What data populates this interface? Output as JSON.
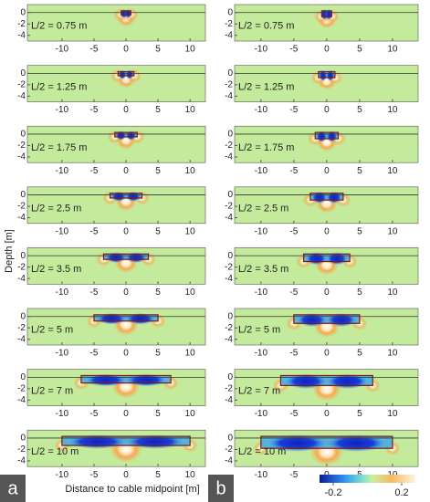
{
  "y_label": "Depth [m]",
  "x_label": "Distance to cable midpoint [m]",
  "colorbar": {
    "clim": [
      -0.28,
      0.28
    ],
    "ticks": [
      -0.2,
      0.2
    ]
  },
  "columns": [
    {
      "letter": "a",
      "xlim": [
        -15.4,
        12.4
      ],
      "ylim": [
        -5,
        1.4
      ],
      "xticks": [
        -10,
        -5,
        0,
        5,
        10
      ],
      "yticks": [
        0,
        -2,
        -4
      ],
      "panels": [
        {
          "label": "L/2 = 0.75 m",
          "half_length": 0.75
        },
        {
          "label": "L/2 = 1.25 m",
          "half_length": 1.25
        },
        {
          "label": "L/2 = 1.75 m",
          "half_length": 1.75
        },
        {
          "label": "L/2 = 2.5 m",
          "half_length": 2.5
        },
        {
          "label": "L/2 = 3.5 m",
          "half_length": 3.5
        },
        {
          "label": "L/2 = 5 m",
          "half_length": 5
        },
        {
          "label": "L/2 = 7 m",
          "half_length": 7
        },
        {
          "label": "L/2 = 10 m",
          "half_length": 10
        }
      ]
    },
    {
      "letter": "b",
      "xlim": [
        -14,
        13.9
      ],
      "ylim": [
        -5,
        1.4
      ],
      "xticks": [
        -10,
        -5,
        0,
        5,
        10
      ],
      "yticks": [
        0,
        -2,
        -4
      ],
      "panels": [
        {
          "label": "L/2 = 0.75 m",
          "half_length": 0.75
        },
        {
          "label": "L/2 = 1.25 m",
          "half_length": 1.25
        },
        {
          "label": "L/2 = 1.75 m",
          "half_length": 1.75
        },
        {
          "label": "L/2 = 2.5 m",
          "half_length": 2.5
        },
        {
          "label": "L/2 = 3.5 m",
          "half_length": 3.5
        },
        {
          "label": "L/2 = 5 m",
          "half_length": 5
        },
        {
          "label": "L/2 = 7 m",
          "half_length": 7
        },
        {
          "label": "L/2 = 10 m",
          "half_length": 10
        }
      ]
    }
  ]
}
